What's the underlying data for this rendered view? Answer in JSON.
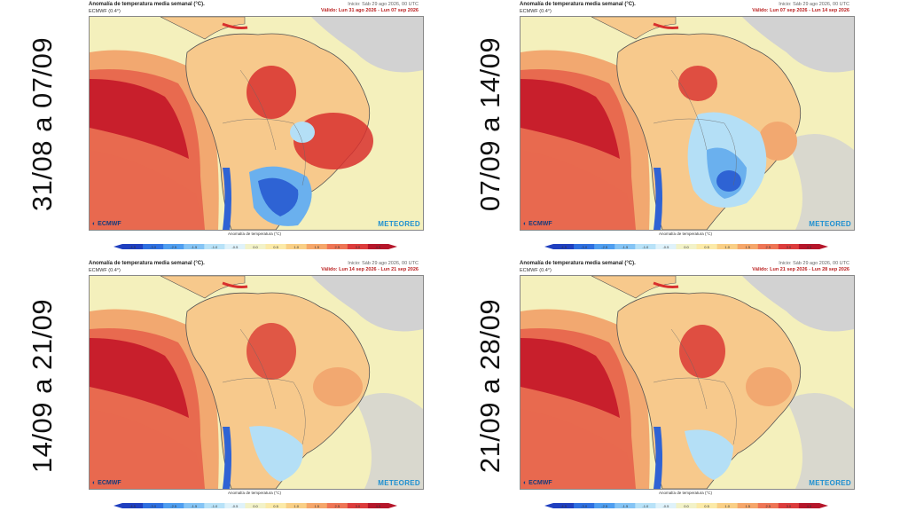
{
  "header": {
    "title": "Anomalía de temperatura media semanal (°C).",
    "model": "ECMWF (0.4°)",
    "init": "Inicio: Sáb 29 ago 2026, 00 UTC"
  },
  "logo_left": "ECMWF",
  "logo_right": "METEORED",
  "colorbar": {
    "title": "Anomalía de temperatura (°C)",
    "ticks": [
      "-4.5",
      "-3.0",
      "-2.5",
      "-1.5",
      "-1.0",
      "-0.5",
      "0.0",
      "0.5",
      "1.0",
      "1.5",
      "2.5",
      "3.0",
      "4.5"
    ],
    "colors": [
      "#1f3fbf",
      "#2e6fe0",
      "#4f9ef0",
      "#85c4f5",
      "#b8e2f8",
      "#dff2fa",
      "#f2f2c8",
      "#fbeaa8",
      "#f9cf86",
      "#f5a66a",
      "#ee7555",
      "#dc3c3c",
      "#b5162a"
    ]
  },
  "panels": [
    {
      "label": "31/08 a 07/09",
      "valid": "Válido: Lun 31 ago 2026 - Lun 07 sep 2026"
    },
    {
      "label": "07/09 a 14/09",
      "valid": "Válido: Lun 07 sep 2026 - Lun 14 sep 2026"
    },
    {
      "label": "14/09 a 21/09",
      "valid": "Válido: Lun 14 sep 2026 - Lun 21 sep 2026"
    },
    {
      "label": "21/09 a 28/09",
      "valid": "Válido: Lun 21 sep 2026 - Lun 28 sep 2026"
    }
  ],
  "palette": {
    "land_warm": "#f7c98c",
    "sea_neutral": "#f4f0bc",
    "ocean_hot1": "#f2a870",
    "ocean_hot2": "#e86a4f",
    "ocean_hot3": "#c81f2c",
    "neutral_grey": "#d2d2d2",
    "cool_light": "#b4dff6",
    "cool_mid": "#6ab0ee",
    "cool_dark": "#2e63d4",
    "hot_spot": "#d8302e"
  }
}
